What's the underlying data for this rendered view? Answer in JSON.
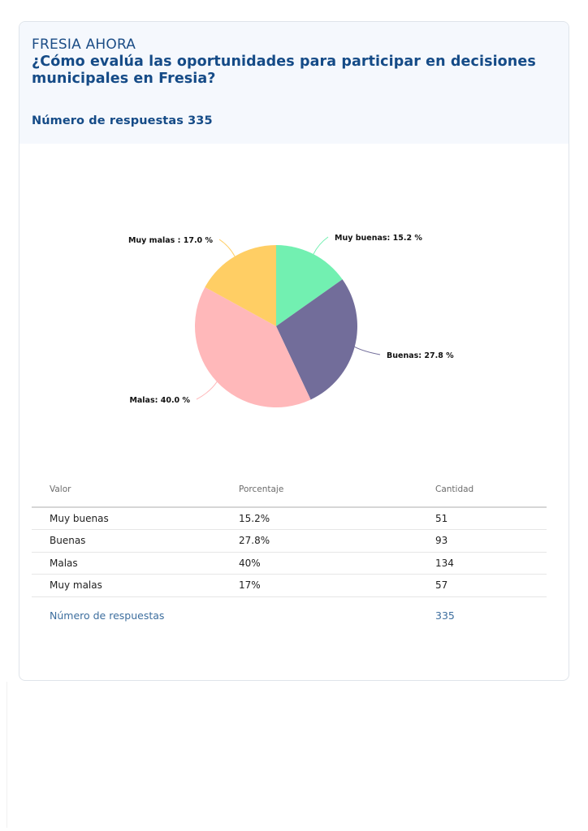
{
  "header": {
    "brand": "FRESIA AHORA",
    "question": "¿Cómo evalúa las oportunidades para participar en decisiones municipales en Fresia?",
    "responses_label": "Número de respuestas 335"
  },
  "chart_data": {
    "type": "pie",
    "categories": [
      "Muy buenas",
      "Buenas",
      "Malas",
      "Muy malas"
    ],
    "values": [
      15.2,
      27.8,
      40.0,
      17.0
    ],
    "labels": [
      "Muy buenas: 15.2 %",
      "Buenas: 27.8 %",
      "Malas: 40.0 %",
      "Muy malas : 17.0 %"
    ],
    "colors": [
      "#72f0b1",
      "#726d9a",
      "#ffb8ba",
      "#ffce64"
    ],
    "title": "",
    "legend": "none"
  },
  "table": {
    "headers": [
      "Valor",
      "Porcentaje",
      "Cantidad"
    ],
    "rows": [
      [
        "Muy buenas",
        "15.2%",
        "51"
      ],
      [
        "Buenas",
        "27.8%",
        "93"
      ],
      [
        "Malas",
        "40%",
        "134"
      ],
      [
        "Muy malas",
        "17%",
        "57"
      ]
    ],
    "total_label": "Número de respuestas",
    "total_value": "335"
  }
}
